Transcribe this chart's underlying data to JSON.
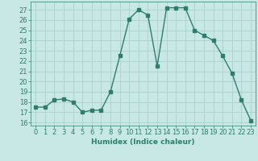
{
  "x": [
    0,
    1,
    2,
    3,
    4,
    5,
    6,
    7,
    8,
    9,
    10,
    11,
    12,
    13,
    14,
    15,
    16,
    17,
    18,
    19,
    20,
    21,
    22,
    23
  ],
  "y": [
    17.5,
    17.5,
    18.2,
    18.3,
    18.0,
    17.0,
    17.2,
    17.2,
    19.0,
    22.5,
    26.1,
    27.0,
    26.5,
    21.5,
    27.2,
    27.2,
    27.2,
    25.0,
    24.5,
    24.0,
    22.5,
    20.8,
    18.2,
    16.2
  ],
  "line_color": "#2e7d6e",
  "marker": "s",
  "markersize": 2.2,
  "linewidth": 1.0,
  "bg_color": "#c8e8e5",
  "grid_color": "#aacfcc",
  "xlabel": "Humidex (Indice chaleur)",
  "ylabel_ticks": [
    16,
    17,
    18,
    19,
    20,
    21,
    22,
    23,
    24,
    25,
    26,
    27
  ],
  "ylim": [
    15.7,
    27.8
  ],
  "xlim": [
    -0.5,
    23.5
  ],
  "xtick_labels": [
    "0",
    "1",
    "2",
    "3",
    "4",
    "5",
    "6",
    "7",
    "8",
    "9",
    "10",
    "11",
    "12",
    "13",
    "14",
    "15",
    "16",
    "17",
    "18",
    "19",
    "20",
    "21",
    "22",
    "23"
  ],
  "label_fontsize": 6.5,
  "tick_fontsize": 6.0
}
